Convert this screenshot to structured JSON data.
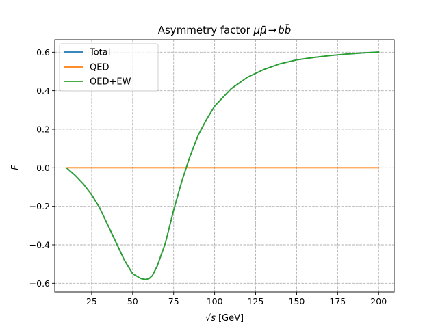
{
  "title_math": {
    "prefix": "Asymmetry factor ",
    "left": "μμ̄",
    "arrow": "→",
    "right": "bb̄"
  },
  "chart_data": {
    "type": "line",
    "title": "Asymmetry factor μμ̄ → bb̄",
    "xlabel_parts": {
      "root": "√",
      "var": "s",
      "unit": "[GeV]"
    },
    "xlabel": "√s [GeV]",
    "ylabel": "F",
    "xlim": [
      2.5,
      209.5
    ],
    "ylim": [
      -0.645,
      0.665
    ],
    "xticks": [
      25,
      50,
      75,
      100,
      125,
      150,
      175,
      200
    ],
    "xtick_labels": [
      "25",
      "50",
      "75",
      "100",
      "125",
      "150",
      "175",
      "200"
    ],
    "yticks": [
      -0.6,
      -0.4,
      -0.2,
      0.0,
      0.2,
      0.4,
      0.6
    ],
    "ytick_labels": [
      "−0.6",
      "−0.4",
      "−0.2",
      "0.0",
      "0.2",
      "0.4",
      "0.6"
    ],
    "grid": true,
    "legend_position": "top-left",
    "series": [
      {
        "name": "Total",
        "color": "#1f77b4",
        "x": [
          10,
          15,
          20,
          25,
          30,
          35,
          40,
          45,
          50,
          55,
          58,
          60,
          62,
          65,
          70,
          75,
          80,
          85,
          90,
          95,
          100,
          110,
          120,
          130,
          140,
          150,
          160,
          170,
          180,
          190,
          200
        ],
        "y": [
          -0.003,
          -0.04,
          -0.085,
          -0.14,
          -0.21,
          -0.3,
          -0.39,
          -0.48,
          -0.55,
          -0.575,
          -0.58,
          -0.575,
          -0.56,
          -0.51,
          -0.39,
          -0.22,
          -0.07,
          0.06,
          0.17,
          0.25,
          0.32,
          0.41,
          0.47,
          0.51,
          0.54,
          0.56,
          0.572,
          0.582,
          0.59,
          0.596,
          0.601
        ]
      },
      {
        "name": "QED",
        "color": "#ff7f0e",
        "x": [
          10,
          200
        ],
        "y": [
          0.0,
          0.0
        ]
      },
      {
        "name": "QED+EW",
        "color": "#2ca02c",
        "x": [
          10,
          15,
          20,
          25,
          30,
          35,
          40,
          45,
          50,
          55,
          58,
          60,
          62,
          65,
          70,
          75,
          80,
          85,
          90,
          95,
          100,
          110,
          120,
          130,
          140,
          150,
          160,
          170,
          180,
          190,
          200
        ],
        "y": [
          -0.003,
          -0.04,
          -0.085,
          -0.14,
          -0.21,
          -0.3,
          -0.39,
          -0.48,
          -0.55,
          -0.575,
          -0.58,
          -0.575,
          -0.56,
          -0.51,
          -0.39,
          -0.22,
          -0.07,
          0.06,
          0.17,
          0.25,
          0.32,
          0.41,
          0.47,
          0.51,
          0.54,
          0.56,
          0.572,
          0.582,
          0.59,
          0.596,
          0.601
        ]
      }
    ]
  }
}
